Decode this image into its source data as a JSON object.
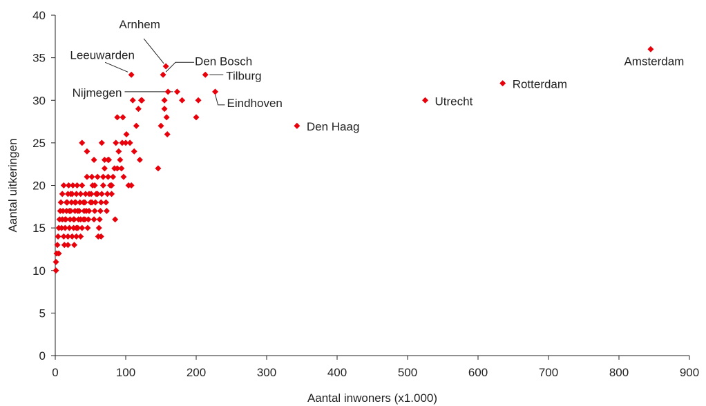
{
  "chart_data": {
    "type": "scatter",
    "xlabel": "Aantal inwoners (x1.000)",
    "ylabel": "Aantal uitkeringen",
    "xlim": [
      0,
      900
    ],
    "ylim": [
      0,
      40
    ],
    "x_ticks": [
      "0",
      "100",
      "200",
      "300",
      "400",
      "500",
      "600",
      "700",
      "800",
      "900"
    ],
    "y_ticks": [
      "0",
      "5",
      "10",
      "15",
      "20",
      "25",
      "30",
      "35",
      "40"
    ],
    "grid": false,
    "marker_color": "#e8000b",
    "marker": "diamond",
    "labeled_points": [
      {
        "label": "Amsterdam",
        "x": 845,
        "y": 36
      },
      {
        "label": "Rotterdam",
        "x": 635,
        "y": 32
      },
      {
        "label": "Utrecht",
        "x": 525,
        "y": 30
      },
      {
        "label": "Den Haag",
        "x": 343,
        "y": 27
      },
      {
        "label": "Eindhoven",
        "x": 227,
        "y": 31
      },
      {
        "label": "Tilburg",
        "x": 213,
        "y": 33
      },
      {
        "label": "Den Bosch",
        "x": 153,
        "y": 33
      },
      {
        "label": "Arnhem",
        "x": 157,
        "y": 34
      },
      {
        "label": "Leeuwarden",
        "x": 108,
        "y": 33
      },
      {
        "label": "Nijmegen",
        "x": 173,
        "y": 31
      }
    ],
    "points": [
      [
        1,
        10
      ],
      [
        1,
        11
      ],
      [
        2,
        12
      ],
      [
        3,
        13
      ],
      [
        5,
        12
      ],
      [
        4,
        14
      ],
      [
        5,
        15
      ],
      [
        6,
        16
      ],
      [
        7,
        17
      ],
      [
        8,
        18
      ],
      [
        10,
        19
      ],
      [
        12,
        20
      ],
      [
        9,
        15
      ],
      [
        10,
        16
      ],
      [
        11,
        17
      ],
      [
        12,
        14
      ],
      [
        13,
        13
      ],
      [
        14,
        15
      ],
      [
        15,
        16
      ],
      [
        16,
        17
      ],
      [
        17,
        18
      ],
      [
        18,
        19
      ],
      [
        19,
        20
      ],
      [
        18,
        14
      ],
      [
        20,
        15
      ],
      [
        21,
        16
      ],
      [
        22,
        17
      ],
      [
        23,
        18
      ],
      [
        24,
        19
      ],
      [
        25,
        20
      ],
      [
        24,
        14
      ],
      [
        26,
        15
      ],
      [
        27,
        16
      ],
      [
        28,
        17
      ],
      [
        29,
        18
      ],
      [
        30,
        19
      ],
      [
        31,
        20
      ],
      [
        27,
        13
      ],
      [
        30,
        14
      ],
      [
        32,
        15
      ],
      [
        33,
        16
      ],
      [
        34,
        17
      ],
      [
        35,
        18
      ],
      [
        36,
        19
      ],
      [
        38,
        20
      ],
      [
        38,
        15
      ],
      [
        40,
        16
      ],
      [
        41,
        17
      ],
      [
        42,
        18
      ],
      [
        43,
        19
      ],
      [
        45,
        21
      ],
      [
        46,
        15
      ],
      [
        47,
        16
      ],
      [
        48,
        17
      ],
      [
        50,
        18
      ],
      [
        51,
        19
      ],
      [
        52,
        21
      ],
      [
        53,
        20
      ],
      [
        55,
        16
      ],
      [
        56,
        17
      ],
      [
        57,
        18
      ],
      [
        58,
        19
      ],
      [
        60,
        21
      ],
      [
        61,
        14
      ],
      [
        62,
        15
      ],
      [
        63,
        16
      ],
      [
        64,
        17
      ],
      [
        65,
        18
      ],
      [
        66,
        19
      ],
      [
        65,
        14
      ],
      [
        68,
        20
      ],
      [
        68,
        21
      ],
      [
        70,
        22
      ],
      [
        70,
        23
      ],
      [
        72,
        18
      ],
      [
        73,
        17
      ],
      [
        74,
        19
      ],
      [
        75,
        21
      ],
      [
        76,
        23
      ],
      [
        78,
        20
      ],
      [
        80,
        19
      ],
      [
        82,
        21
      ],
      [
        84,
        22
      ],
      [
        85,
        16
      ],
      [
        86,
        25
      ],
      [
        88,
        22
      ],
      [
        90,
        24
      ],
      [
        92,
        23
      ],
      [
        95,
        25
      ],
      [
        96,
        28
      ],
      [
        100,
        25
      ],
      [
        101,
        26
      ],
      [
        104,
        20
      ],
      [
        106,
        25
      ],
      [
        108,
        20
      ],
      [
        110,
        30
      ],
      [
        112,
        24
      ],
      [
        115,
        27
      ],
      [
        118,
        29
      ],
      [
        120,
        23
      ],
      [
        122,
        30
      ],
      [
        123,
        30
      ],
      [
        146,
        22
      ],
      [
        150,
        27
      ],
      [
        155,
        29
      ],
      [
        155,
        30
      ],
      [
        158,
        28
      ],
      [
        159,
        26
      ],
      [
        160,
        31
      ],
      [
        180,
        30
      ],
      [
        200,
        28
      ],
      [
        203,
        30
      ],
      [
        38,
        25
      ],
      [
        45,
        24
      ],
      [
        55,
        23
      ],
      [
        66,
        25
      ],
      [
        75,
        23
      ],
      [
        80,
        20
      ],
      [
        88,
        28
      ],
      [
        94,
        22
      ],
      [
        97,
        21
      ],
      [
        60,
        19
      ],
      [
        52,
        18
      ],
      [
        44,
        17
      ],
      [
        36,
        16
      ],
      [
        28,
        18
      ],
      [
        22,
        19
      ],
      [
        16,
        18
      ],
      [
        14,
        16
      ],
      [
        20,
        17
      ],
      [
        26,
        16
      ],
      [
        32,
        17
      ],
      [
        40,
        18
      ],
      [
        48,
        19
      ],
      [
        56,
        20
      ],
      [
        30,
        15
      ],
      [
        36,
        14
      ],
      [
        42,
        16
      ],
      [
        18,
        13
      ]
    ]
  }
}
